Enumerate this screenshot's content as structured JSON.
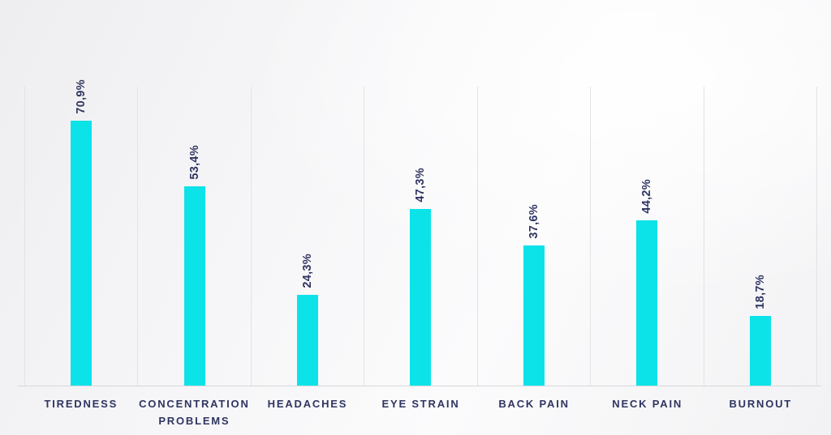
{
  "chart_data": {
    "type": "bar",
    "title": "",
    "xlabel": "",
    "ylabel": "",
    "ylim": [
      0,
      80
    ],
    "grid": "vertical-gridlines-only",
    "legend": "none",
    "categories": [
      "TIREDNESS",
      "CONCENTRATION PROBLEMS",
      "HEADACHES",
      "EYE STRAIN",
      "BACK PAIN",
      "NECK PAIN",
      "BURNOUT"
    ],
    "values": [
      70.9,
      53.4,
      24.3,
      47.3,
      37.6,
      44.2,
      18.7
    ],
    "value_labels": [
      "70,9%",
      "53,4%",
      "24,3%",
      "47,3%",
      "37,6%",
      "44,2%",
      "18,7%"
    ],
    "colors": {
      "bar": "#0be3e9",
      "label_text": "#2f3560",
      "gridline": "#e3e3e6",
      "axis_line": "#d7d7da",
      "background": "#f4f4f6"
    }
  }
}
